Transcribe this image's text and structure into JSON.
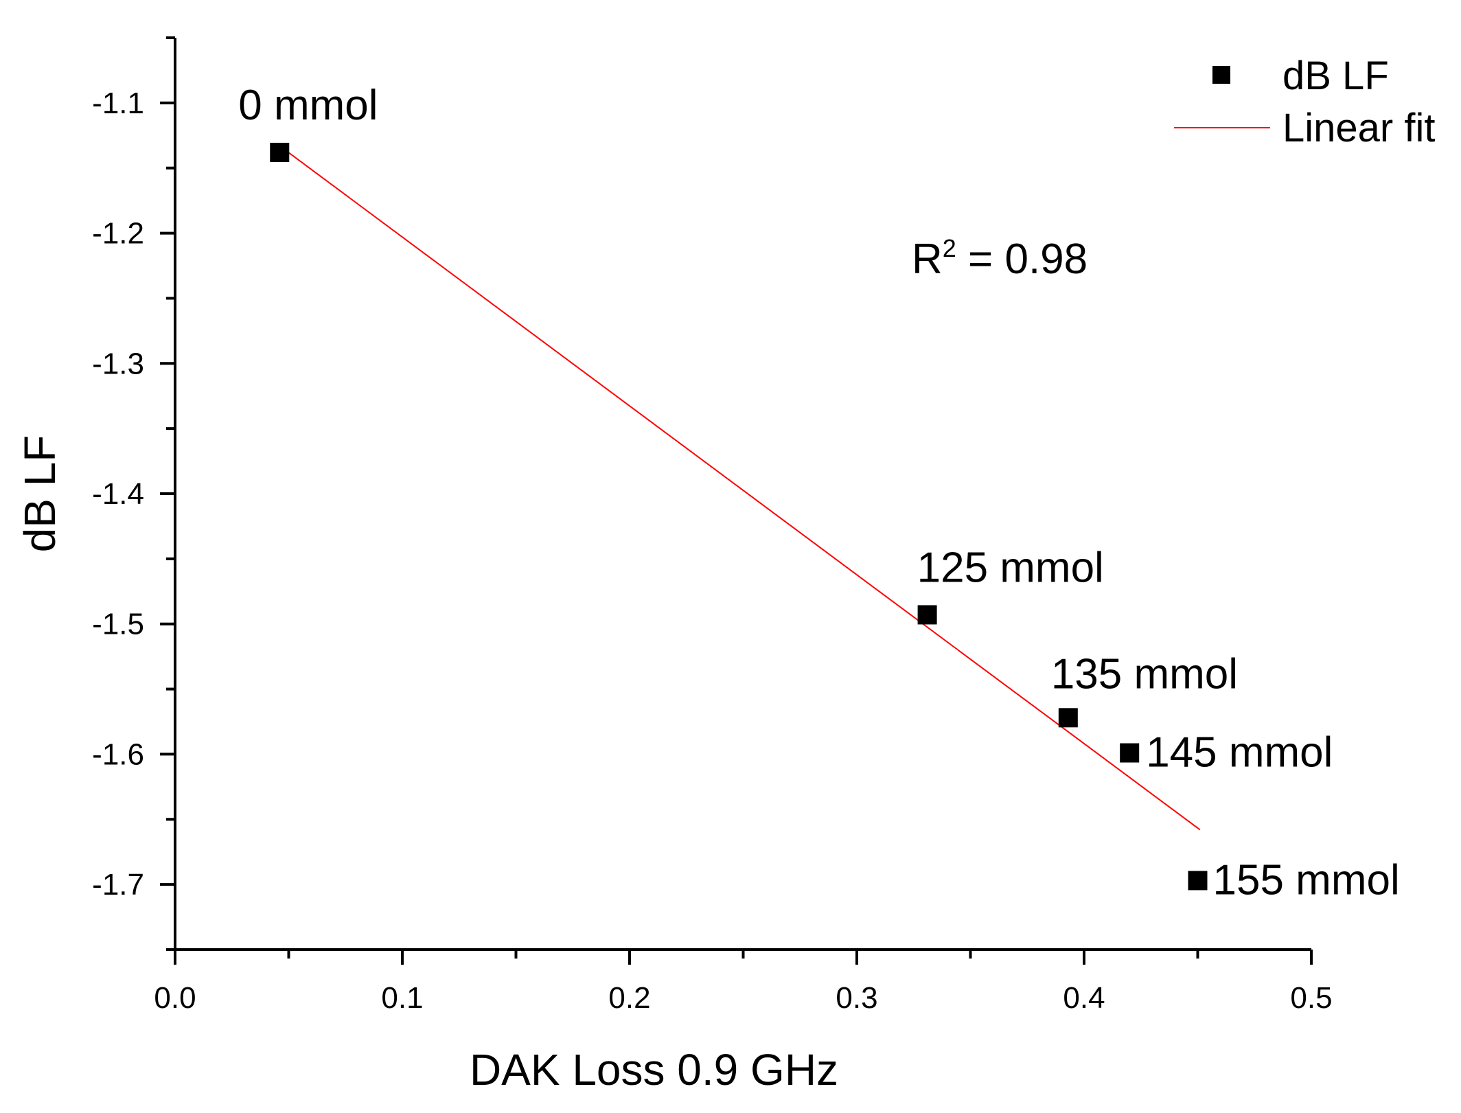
{
  "chart_data": {
    "type": "scatter",
    "xlabel": "DAK Loss 0.9 GHz",
    "ylabel": "dB LF",
    "xlim": [
      0.0,
      0.5
    ],
    "ylim": [
      -1.75,
      -1.05
    ],
    "x_ticks": [
      0.0,
      0.1,
      0.2,
      0.3,
      0.4,
      0.5
    ],
    "x_tick_labels": [
      "0.0",
      "0.1",
      "0.2",
      "0.3",
      "0.4",
      "0.5"
    ],
    "x_minor_ticks": [
      0.05,
      0.15,
      0.25,
      0.35,
      0.45
    ],
    "y_ticks": [
      -1.1,
      -1.2,
      -1.3,
      -1.4,
      -1.5,
      -1.6,
      -1.7
    ],
    "y_tick_labels": [
      "-1.1",
      "-1.2",
      "-1.3",
      "-1.4",
      "-1.5",
      "-1.6",
      "-1.7"
    ],
    "y_minor_ticks": [
      -1.05,
      -1.15,
      -1.25,
      -1.35,
      -1.45,
      -1.55,
      -1.65,
      -1.75
    ],
    "grid": false,
    "legend_position": "top-right",
    "series": [
      {
        "name": "dB LF",
        "type": "scatter",
        "marker": "square",
        "color": "#000000",
        "points": [
          {
            "x": 0.046,
            "y": -1.138,
            "label": "0 mmol"
          },
          {
            "x": 0.331,
            "y": -1.493,
            "label": "125 mmol"
          },
          {
            "x": 0.393,
            "y": -1.572,
            "label": "135 mmol"
          },
          {
            "x": 0.42,
            "y": -1.599,
            "label": "145 mmol"
          },
          {
            "x": 0.45,
            "y": -1.697,
            "label": "155 mmol"
          }
        ]
      },
      {
        "name": "Linear fit",
        "type": "line",
        "color": "#ff0000",
        "x": [
          0.046,
          0.451
        ],
        "y": [
          -1.133,
          -1.658
        ]
      }
    ],
    "annotation": {
      "base": "R",
      "superscript": "2",
      "text": " = 0.98"
    }
  }
}
